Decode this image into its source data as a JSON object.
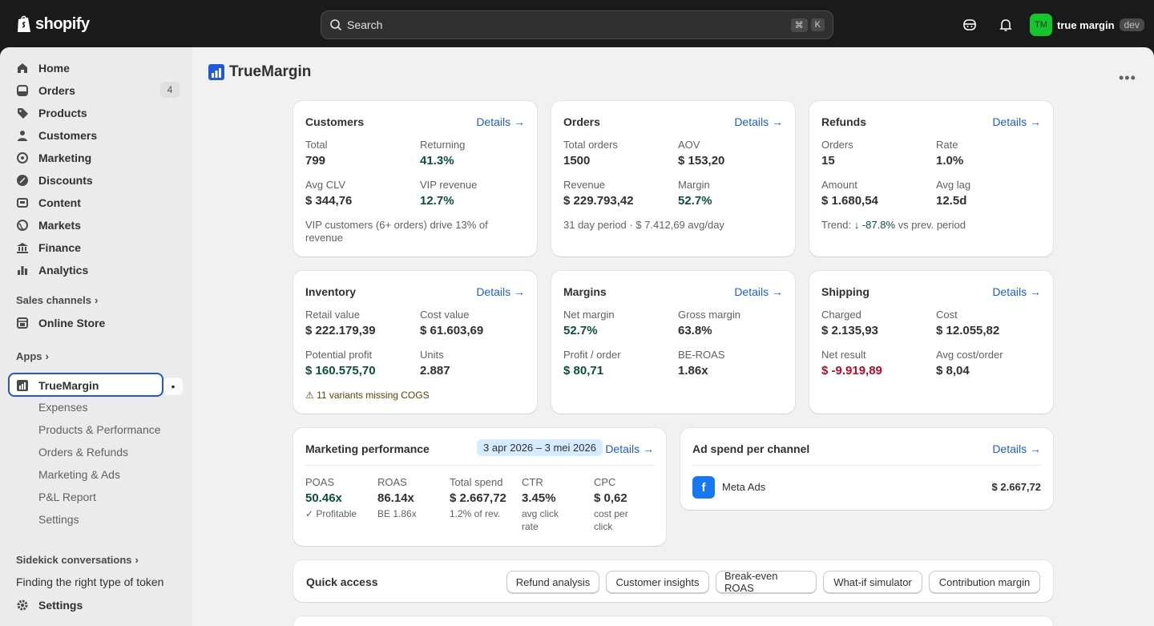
{
  "topbar": {
    "brand": "shopify",
    "search_placeholder": "Search",
    "shortcut_keys": [
      "⌘",
      "K"
    ],
    "account_initials": "TM",
    "account_name": "true margin",
    "account_badge": "dev",
    "avatar_color": "#16c42d"
  },
  "sidebar": {
    "items": [
      {
        "label": "Home",
        "icon": "home-icon"
      },
      {
        "label": "Orders",
        "icon": "orders-icon",
        "count": "4"
      },
      {
        "label": "Products",
        "icon": "tag-icon"
      },
      {
        "label": "Customers",
        "icon": "person-icon"
      },
      {
        "label": "Marketing",
        "icon": "target-icon"
      },
      {
        "label": "Discounts",
        "icon": "discount-icon"
      },
      {
        "label": "Content",
        "icon": "content-icon"
      },
      {
        "label": "Markets",
        "icon": "globe-icon"
      },
      {
        "label": "Finance",
        "icon": "bank-icon"
      },
      {
        "label": "Analytics",
        "icon": "bar-chart-icon"
      }
    ],
    "sales_channels_label": "Sales channels",
    "online_store_label": "Online Store",
    "apps_label": "Apps",
    "app_name": "TrueMargin",
    "app_subitems": [
      "Expenses",
      "Products & Performance",
      "Orders & Refunds",
      "Marketing & Ads",
      "P&L Report",
      "Settings"
    ],
    "sidekick_label": "Sidekick conversations",
    "sidekick_item": "Finding the right type of token",
    "settings_label": "Settings"
  },
  "page": {
    "title": "TrueMargin",
    "more_label": "•••"
  },
  "cards": {
    "details_label": "Details →",
    "customers": {
      "title": "Customers",
      "total_label": "Total",
      "total_value": "799",
      "returning_label": "Returning",
      "returning_value": "41.3%",
      "clv_label": "Avg CLV",
      "clv_value": "$ 344,76",
      "vip_label": "VIP revenue",
      "vip_value": "12.7%",
      "note": "VIP customers (6+ orders) drive 13% of revenue"
    },
    "orders": {
      "title": "Orders",
      "total_label": "Total orders",
      "total_value": "1500",
      "aov_label": "AOV",
      "aov_value": "$ 153,20",
      "revenue_label": "Revenue",
      "revenue_value": "$ 229.793,42",
      "margin_label": "Margin",
      "margin_value": "52.7%",
      "note": "31 day period · $ 7.412,69 avg/day"
    },
    "refunds": {
      "title": "Refunds",
      "orders_label": "Orders",
      "orders_value": "15",
      "rate_label": "Rate",
      "rate_value": "1.0%",
      "amount_label": "Amount",
      "amount_value": "$ 1.680,54",
      "lag_label": "Avg lag",
      "lag_value": "12.5d",
      "trend_prefix": "Trend:",
      "trend_value": "↓ -87.8%",
      "trend_suffix": "vs prev. period"
    },
    "inventory": {
      "title": "Inventory",
      "retail_label": "Retail value",
      "retail_value": "$ 222.179,39",
      "cost_label": "Cost value",
      "cost_value": "$ 61.603,69",
      "profit_label": "Potential profit",
      "profit_value": "$ 160.575,70",
      "units_label": "Units",
      "units_value": "2.887",
      "warning": "⚠ 11 variants missing COGS"
    },
    "margins": {
      "title": "Margins",
      "net_label": "Net margin",
      "net_value": "52.7%",
      "gross_label": "Gross margin",
      "gross_value": "63.8%",
      "ppo_label": "Profit / order",
      "ppo_value": "$ 80,71",
      "beroas_label": "BE-ROAS",
      "beroas_value": "1.86x"
    },
    "shipping": {
      "title": "Shipping",
      "charged_label": "Charged",
      "charged_value": "$ 2.135,93",
      "cost_label": "Cost",
      "cost_value": "$ 12.055,82",
      "net_label": "Net result",
      "net_value": "$ -9.919,89",
      "avg_label": "Avg cost/order",
      "avg_value": "$ 8,04"
    },
    "marketing": {
      "title": "Marketing performance",
      "date_range": "3 apr 2026 – 3 mei 2026",
      "metrics": [
        {
          "label": "POAS",
          "value": "50.46x",
          "sub": "✓ Profitable",
          "green": true
        },
        {
          "label": "ROAS",
          "value": "86.14x",
          "sub": "BE 1.86x",
          "green": false
        },
        {
          "label": "Total spend",
          "value": "$ 2.667,72",
          "sub": "1.2% of rev.",
          "green": false
        },
        {
          "label": "CTR",
          "value": "3.45%",
          "sub": "avg click rate",
          "green": false
        },
        {
          "label": "CPC",
          "value": "$ 0,62",
          "sub": "cost per click",
          "green": false
        }
      ]
    },
    "adspend": {
      "title": "Ad spend per channel",
      "channel_icon_letter": "f",
      "channel_name": "Meta Ads",
      "channel_value": "$ 2.667,72"
    },
    "quick_access": {
      "title": "Quick access",
      "buttons": [
        "Refund analysis",
        "Customer insights",
        "Break-even ROAS",
        "What-if simulator",
        "Contribution margin"
      ]
    }
  }
}
